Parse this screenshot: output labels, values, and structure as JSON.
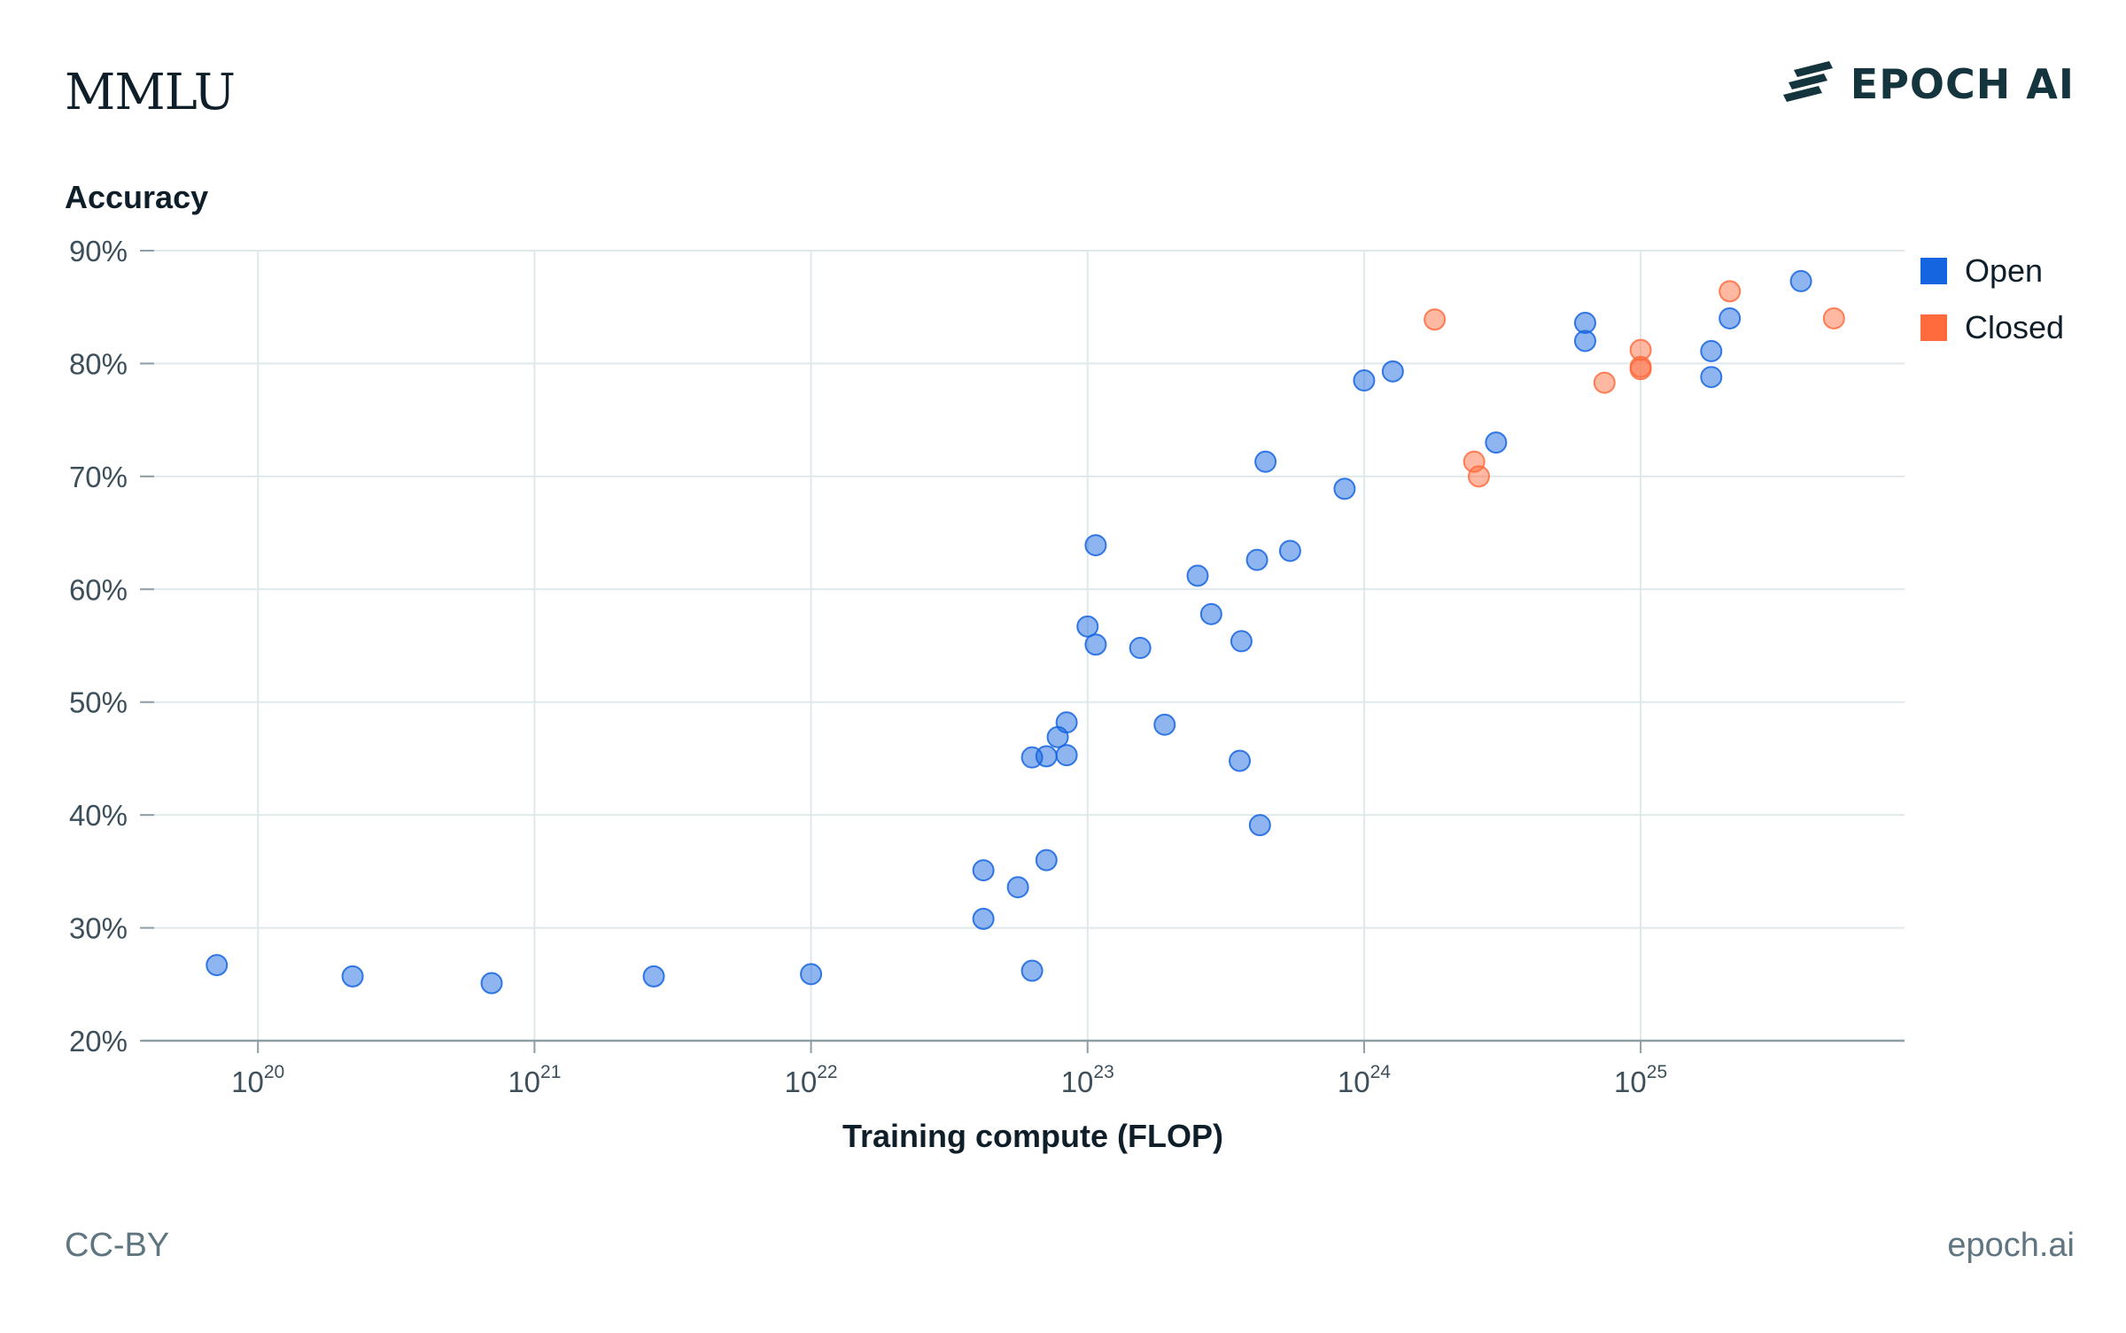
{
  "header": {
    "title": "MMLU",
    "brand": "EPOCH AI"
  },
  "footer": {
    "license": "CC-BY",
    "site": "epoch.ai"
  },
  "colors": {
    "open": "#1565e0",
    "closed": "#ff6b3d",
    "grid": "#dfe8ea",
    "axis": "#8e9ea6"
  },
  "chart_data": {
    "type": "scatter",
    "xlabel": "Training compute (FLOP)",
    "ylabel": "Accuracy",
    "xscale": "log",
    "xlim": [
      3.8e+19,
      9e+25
    ],
    "ylim": [
      20,
      90
    ],
    "x_ticks": [
      {
        "value": 1e+20,
        "base": "10",
        "exp": "20"
      },
      {
        "value": 1e+21,
        "base": "10",
        "exp": "21"
      },
      {
        "value": 1e+22,
        "base": "10",
        "exp": "22"
      },
      {
        "value": 1e+23,
        "base": "10",
        "exp": "23"
      },
      {
        "value": 1e+24,
        "base": "10",
        "exp": "24"
      },
      {
        "value": 1e+25,
        "base": "10",
        "exp": "25"
      }
    ],
    "y_ticks": [
      {
        "value": 20,
        "label": "20%"
      },
      {
        "value": 30,
        "label": "30%"
      },
      {
        "value": 40,
        "label": "40%"
      },
      {
        "value": 50,
        "label": "50%"
      },
      {
        "value": 60,
        "label": "60%"
      },
      {
        "value": 70,
        "label": "70%"
      },
      {
        "value": 80,
        "label": "80%"
      },
      {
        "value": 90,
        "label": "90%"
      }
    ],
    "grid": true,
    "legend_position": "top-right",
    "series": [
      {
        "name": "Open",
        "color": "#1565e0",
        "points": [
          {
            "x": 7.1e+19,
            "y": 26.7
          },
          {
            "x": 2.2e+20,
            "y": 25.7
          },
          {
            "x": 7e+20,
            "y": 25.1
          },
          {
            "x": 2.7e+21,
            "y": 25.7
          },
          {
            "x": 1e+22,
            "y": 25.9
          },
          {
            "x": 4.2e+22,
            "y": 35.1
          },
          {
            "x": 4.2e+22,
            "y": 30.8
          },
          {
            "x": 5.6e+22,
            "y": 33.6
          },
          {
            "x": 6.3e+22,
            "y": 26.2
          },
          {
            "x": 6.3e+22,
            "y": 45.1
          },
          {
            "x": 7.1e+22,
            "y": 45.2
          },
          {
            "x": 7.1e+22,
            "y": 36.0
          },
          {
            "x": 7.8e+22,
            "y": 46.9
          },
          {
            "x": 8.4e+22,
            "y": 48.2
          },
          {
            "x": 8.4e+22,
            "y": 45.3
          },
          {
            "x": 1e+23,
            "y": 56.7
          },
          {
            "x": 1.07e+23,
            "y": 63.9
          },
          {
            "x": 1.07e+23,
            "y": 55.1
          },
          {
            "x": 1.55e+23,
            "y": 54.8
          },
          {
            "x": 1.9e+23,
            "y": 48.0
          },
          {
            "x": 2.5e+23,
            "y": 61.2
          },
          {
            "x": 2.8e+23,
            "y": 57.8
          },
          {
            "x": 3.55e+23,
            "y": 44.8
          },
          {
            "x": 3.6e+23,
            "y": 55.4
          },
          {
            "x": 4.1e+23,
            "y": 62.6
          },
          {
            "x": 4.2e+23,
            "y": 39.1
          },
          {
            "x": 4.4e+23,
            "y": 71.3
          },
          {
            "x": 5.4e+23,
            "y": 63.4
          },
          {
            "x": 8.5e+23,
            "y": 68.9
          },
          {
            "x": 1e+24,
            "y": 78.5
          },
          {
            "x": 1.27e+24,
            "y": 79.3
          },
          {
            "x": 3e+24,
            "y": 73.0
          },
          {
            "x": 6.3e+24,
            "y": 83.6
          },
          {
            "x": 6.3e+24,
            "y": 82.0
          },
          {
            "x": 1.8e+25,
            "y": 81.1
          },
          {
            "x": 1.8e+25,
            "y": 78.8
          },
          {
            "x": 2.1e+25,
            "y": 84.0
          },
          {
            "x": 3.8e+25,
            "y": 87.3
          }
        ]
      },
      {
        "name": "Closed",
        "color": "#ff6b3d",
        "points": [
          {
            "x": 1.8e+24,
            "y": 83.9
          },
          {
            "x": 2.5e+24,
            "y": 71.3
          },
          {
            "x": 2.6e+24,
            "y": 70.0
          },
          {
            "x": 7.4e+24,
            "y": 78.3
          },
          {
            "x": 1e+25,
            "y": 81.2
          },
          {
            "x": 1e+25,
            "y": 79.7
          },
          {
            "x": 1e+25,
            "y": 79.5
          },
          {
            "x": 2.1e+25,
            "y": 86.4
          },
          {
            "x": 5e+25,
            "y": 84.0
          }
        ]
      }
    ]
  }
}
